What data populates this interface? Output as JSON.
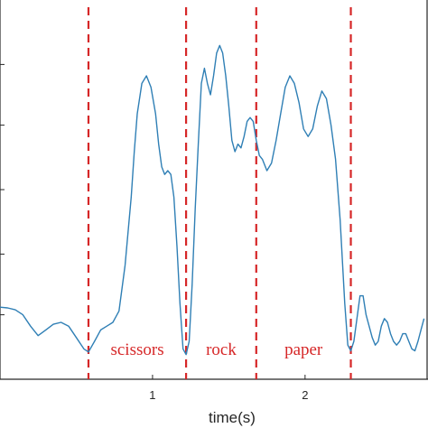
{
  "chart_data": {
    "type": "line",
    "title": "",
    "xlabel": "time(s)",
    "ylabel": "",
    "xlim": [
      0,
      2.8
    ],
    "ylim": [
      0,
      1
    ],
    "x_ticks": [
      {
        "value": 1,
        "label": "1"
      },
      {
        "value": 2,
        "label": "2"
      }
    ],
    "y_ticks": [
      0.17,
      0.33,
      0.5,
      0.67,
      0.83
    ],
    "grid": false,
    "series": [
      {
        "name": "",
        "color": "#2f7fb5",
        "x": [
          0.0,
          0.05,
          0.1,
          0.15,
          0.2,
          0.25,
          0.3,
          0.35,
          0.4,
          0.45,
          0.5,
          0.55,
          0.58,
          0.62,
          0.66,
          0.7,
          0.74,
          0.78,
          0.82,
          0.86,
          0.88,
          0.9,
          0.93,
          0.96,
          0.99,
          1.02,
          1.04,
          1.06,
          1.08,
          1.1,
          1.12,
          1.14,
          1.16,
          1.18,
          1.2,
          1.22,
          1.24,
          1.26,
          1.28,
          1.3,
          1.32,
          1.34,
          1.36,
          1.38,
          1.4,
          1.42,
          1.44,
          1.46,
          1.48,
          1.5,
          1.52,
          1.54,
          1.56,
          1.58,
          1.6,
          1.62,
          1.64,
          1.66,
          1.68,
          1.7,
          1.72,
          1.75,
          1.78,
          1.81,
          1.84,
          1.87,
          1.9,
          1.93,
          1.96,
          1.99,
          2.02,
          2.05,
          2.08,
          2.11,
          2.14,
          2.17,
          2.2,
          2.23,
          2.26,
          2.28,
          2.3,
          2.32,
          2.34,
          2.36,
          2.38,
          2.4,
          2.42,
          2.44,
          2.46,
          2.48,
          2.5,
          2.52,
          2.54,
          2.56,
          2.58,
          2.6,
          2.62,
          2.64,
          2.66,
          2.68,
          2.7,
          2.72,
          2.74,
          2.76,
          2.78
        ],
        "y": [
          0.19,
          0.188,
          0.183,
          0.17,
          0.14,
          0.115,
          0.13,
          0.145,
          0.15,
          0.14,
          0.11,
          0.08,
          0.072,
          0.1,
          0.13,
          0.14,
          0.15,
          0.18,
          0.3,
          0.48,
          0.6,
          0.7,
          0.78,
          0.8,
          0.77,
          0.7,
          0.62,
          0.56,
          0.54,
          0.55,
          0.54,
          0.48,
          0.35,
          0.2,
          0.08,
          0.065,
          0.1,
          0.25,
          0.45,
          0.62,
          0.78,
          0.82,
          0.78,
          0.75,
          0.8,
          0.86,
          0.88,
          0.86,
          0.8,
          0.72,
          0.63,
          0.6,
          0.62,
          0.61,
          0.64,
          0.68,
          0.69,
          0.68,
          0.63,
          0.59,
          0.58,
          0.55,
          0.57,
          0.63,
          0.7,
          0.77,
          0.8,
          0.78,
          0.73,
          0.66,
          0.64,
          0.66,
          0.72,
          0.76,
          0.74,
          0.67,
          0.58,
          0.42,
          0.2,
          0.09,
          0.075,
          0.1,
          0.16,
          0.22,
          0.22,
          0.17,
          0.14,
          0.11,
          0.09,
          0.1,
          0.14,
          0.16,
          0.15,
          0.12,
          0.1,
          0.09,
          0.1,
          0.12,
          0.12,
          0.1,
          0.08,
          0.075,
          0.1,
          0.13,
          0.16
        ]
      }
    ],
    "boundaries": [
      0.58,
      1.22,
      1.68,
      2.3
    ],
    "annotations": [
      {
        "text": "scissors",
        "x": 0.9
      },
      {
        "text": "rock",
        "x": 1.45
      },
      {
        "text": "paper",
        "x": 1.99
      }
    ]
  }
}
